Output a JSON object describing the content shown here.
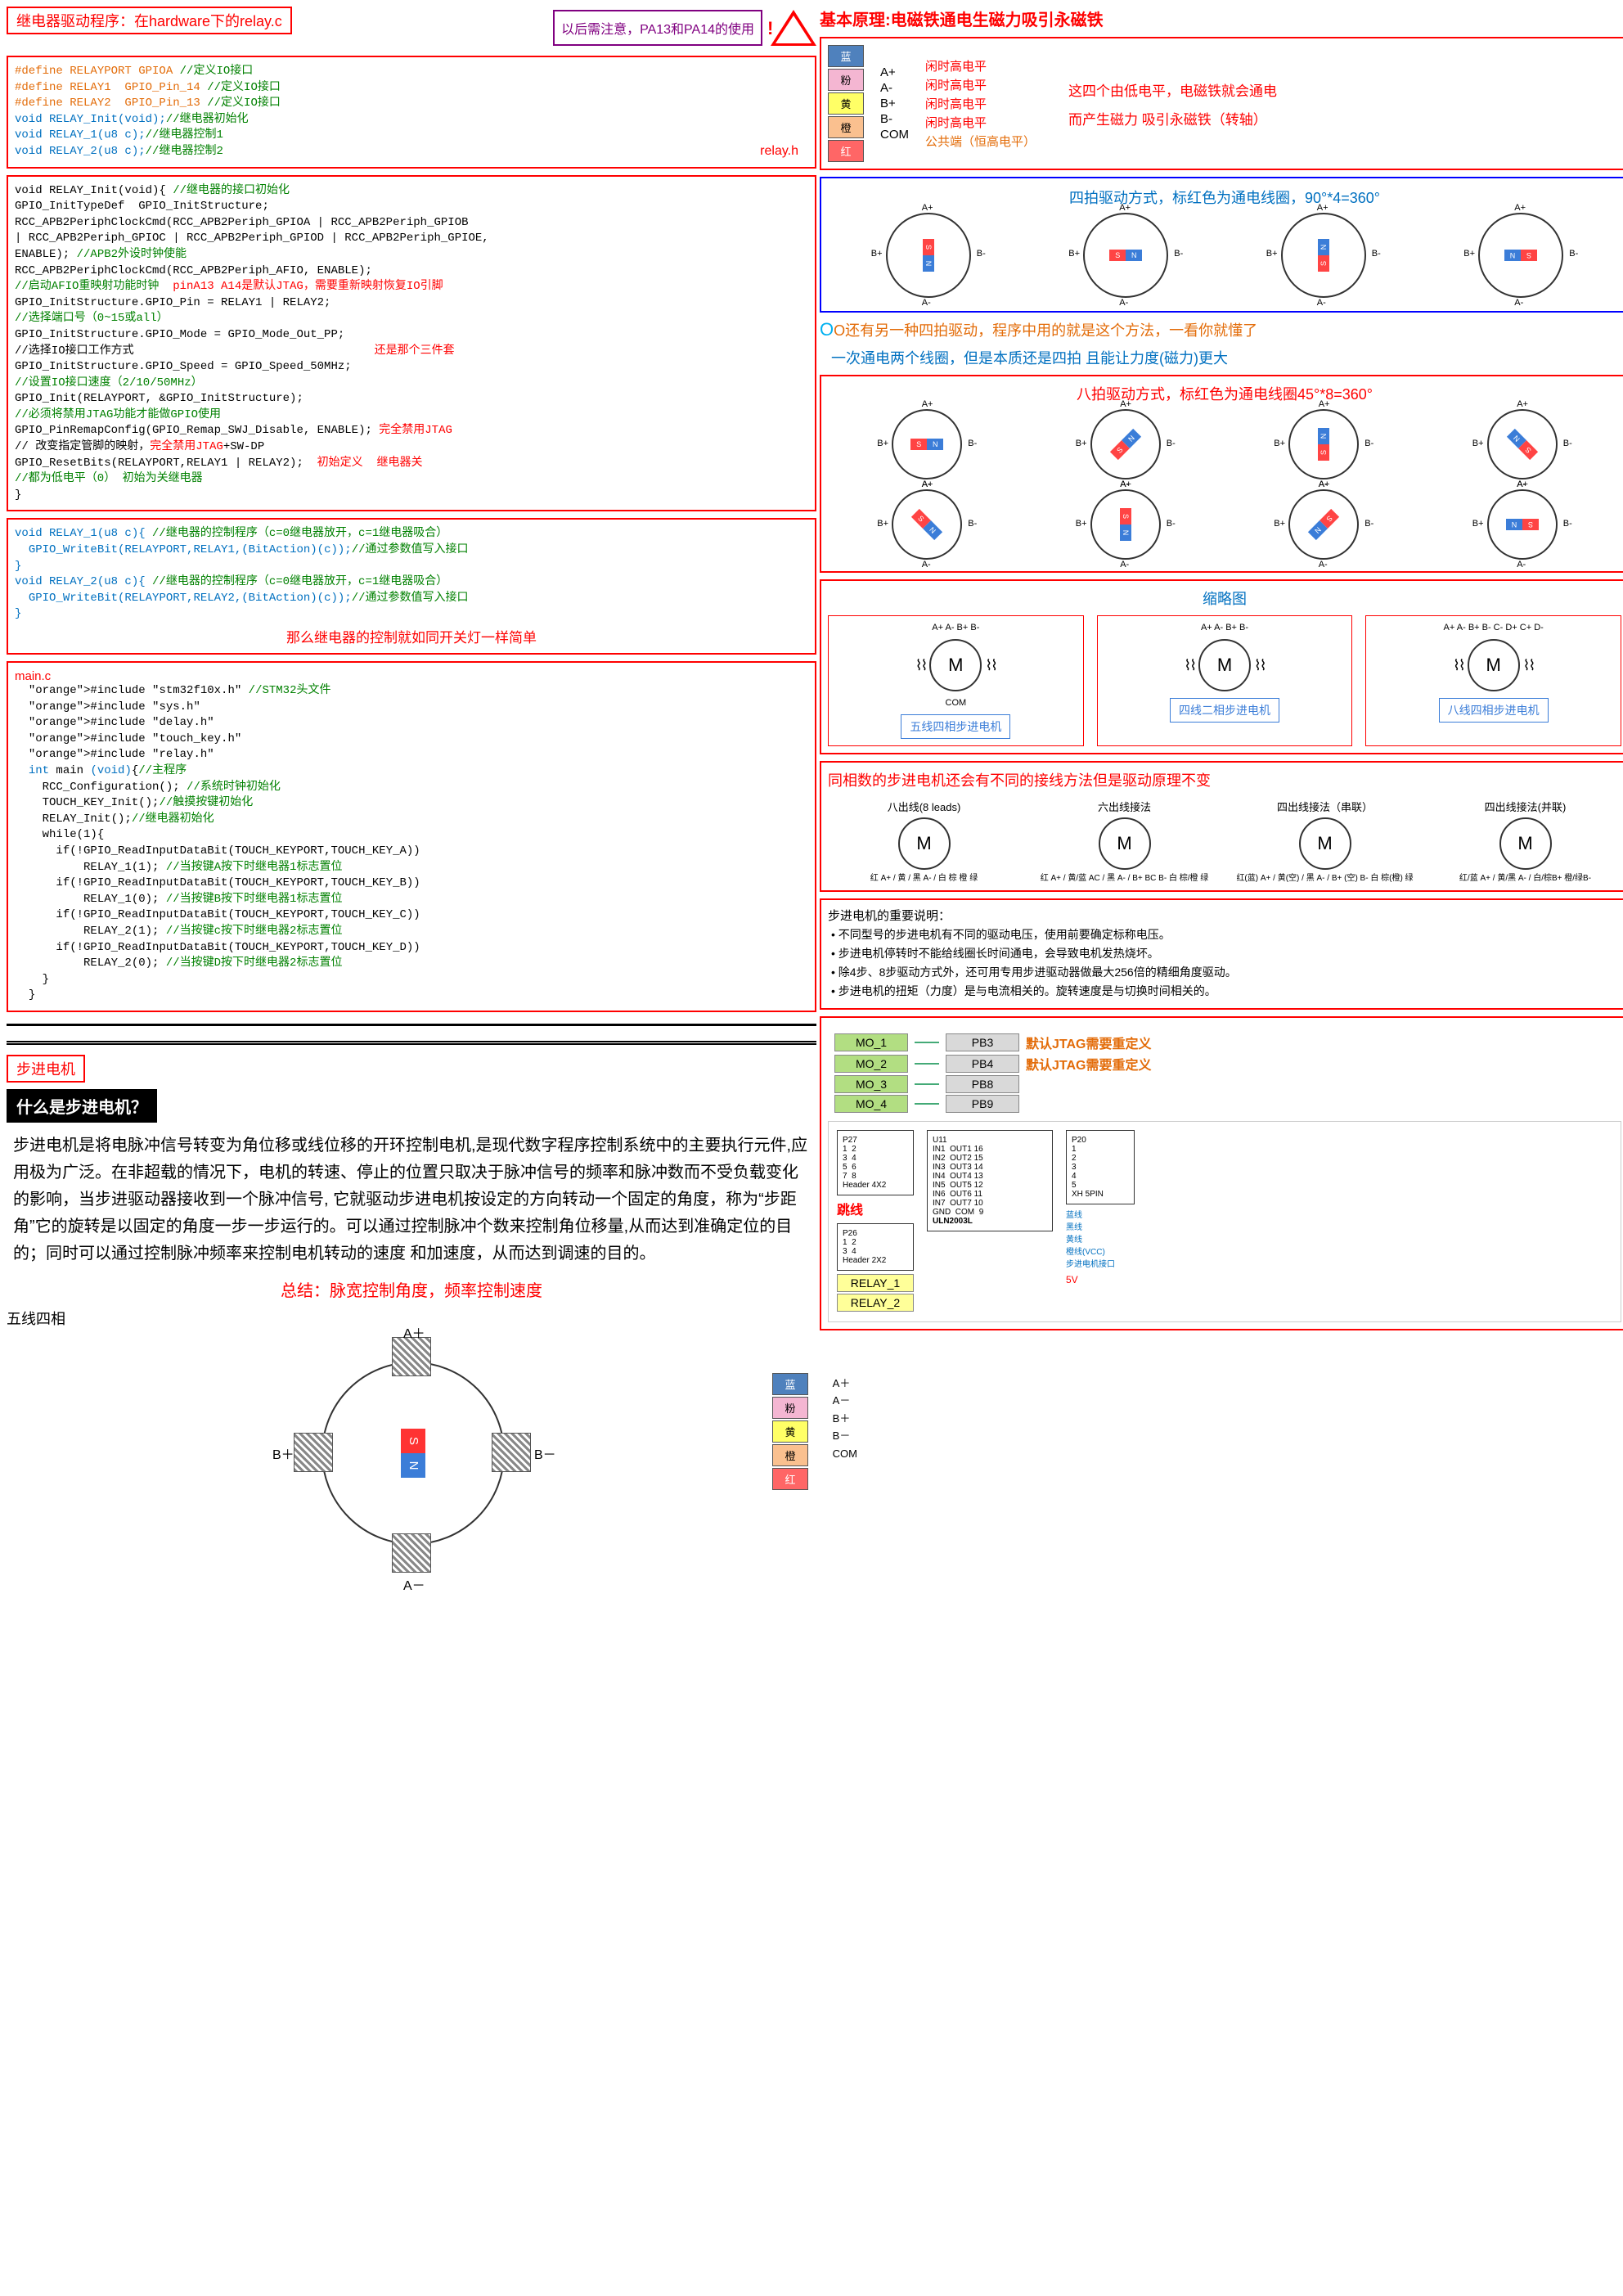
{
  "left": {
    "title": "继电器驱动程序：在hardware下的relay.c",
    "callout": "以后需注意，PA13和PA14的使用",
    "relay_h_tag": "relay.h",
    "code1": [
      [
        "orange",
        "#define RELAYPORT GPIOA "
      ],
      [
        "green",
        "//定义IO接口"
      ],
      [
        "",
        ""
      ],
      [
        "orange",
        "#define RELAY1  GPIO_Pin_14 "
      ],
      [
        "green",
        "//定义IO接口"
      ],
      [
        "",
        ""
      ],
      [
        "orange",
        "#define RELAY2  GPIO_Pin_13 "
      ],
      [
        "green",
        "//定义IO接口"
      ],
      [
        "",
        ""
      ],
      [
        "blue",
        "void RELAY_Init(void);"
      ],
      [
        "green",
        "//继电器初始化"
      ],
      [
        "",
        ""
      ],
      [
        "blue",
        "void RELAY_1(u8 c);"
      ],
      [
        "green",
        "//继电器控制1"
      ],
      [
        "",
        ""
      ],
      [
        "blue",
        "void RELAY_2(u8 c);"
      ],
      [
        "green",
        "//继电器控制2"
      ]
    ],
    "code2": "void RELAY_Init(void){ //继电器的接口初始化\nGPIO_InitTypeDef  GPIO_InitStructure;\nRCC_APB2PeriphClockCmd(RCC_APB2Periph_GPIOA | RCC_APB2Periph_GPIOB\n| RCC_APB2Periph_GPIOC | RCC_APB2Periph_GPIOD | RCC_APB2Periph_GPIOE,\nENABLE); //APB2外设时钟使能\nRCC_APB2PeriphClockCmd(RCC_APB2Periph_AFIO, ENABLE);\n//启动AFIO重映射功能时钟  pinA13 A14是默认JTAG，需要重新映射恢复IO引脚\nGPIO_InitStructure.GPIO_Pin = RELAY1 | RELAY2;\n//选择端口号（0~15或all）\nGPIO_InitStructure.GPIO_Mode = GPIO_Mode_Out_PP;\n//选择IO接口工作方式                                   还是那个三件套\nGPIO_InitStructure.GPIO_Speed = GPIO_Speed_50MHz;\n//设置IO接口速度（2/10/50MHz）\nGPIO_Init(RELAYPORT, &GPIO_InitStructure);\n//必须将禁用JTAG功能才能做GPIO使用\nGPIO_PinRemapConfig(GPIO_Remap_SWJ_Disable, ENABLE); 完全禁用JTAG\n// 改变指定管脚的映射，完全禁用JTAG+SW-DP\nGPIO_ResetBits(RELAYPORT,RELAY1 | RELAY2);  初始定义  继电器关\n//都为低电平（0） 初始为关继电器\n}",
    "code3": "void RELAY_1(u8 c){ //继电器的控制程序（c=0继电器放开，c=1继电器吸合）\n  GPIO_WriteBit(RELAYPORT,RELAY1,(BitAction)(c));//通过参数值写入接口\n}\nvoid RELAY_2(u8 c){ //继电器的控制程序（c=0继电器放开，c=1继电器吸合）\n  GPIO_WriteBit(RELAYPORT,RELAY2,(BitAction)(c));//通过参数值写入接口\n}",
    "code3_note": "那么继电器的控制就如同开关灯一样简单",
    "mainc_tag": "main.c",
    "code4": "  #include \"stm32f10x.h\" //STM32头文件\n  #include \"sys.h\"\n  #include \"delay.h\"\n  #include \"touch_key.h\"\n  #include \"relay.h\"\n  int main (void){//主程序\n    RCC_Configuration(); //系统时钟初始化\n    TOUCH_KEY_Init();//触摸按键初始化\n    RELAY_Init();//继电器初始化\n    while(1){\n      if(!GPIO_ReadInputDataBit(TOUCH_KEYPORT,TOUCH_KEY_A))\n          RELAY_1(1); //当按键A按下时继电器1标志置位\n      if(!GPIO_ReadInputDataBit(TOUCH_KEYPORT,TOUCH_KEY_B))\n          RELAY_1(0); //当按键B按下时继电器1标志置位\n      if(!GPIO_ReadInputDataBit(TOUCH_KEYPORT,TOUCH_KEY_C))\n          RELAY_2(1); //当按键c按下时继电器2标志置位\n      if(!GPIO_ReadInputDataBit(TOUCH_KEYPORT,TOUCH_KEY_D))\n          RELAY_2(0); //当按键D按下时继电器2标志置位\n    }\n  }",
    "step_tag": "步进电机",
    "step_q": "什么是步进电机？",
    "step_para": "步进电机是将电脉冲信号转变为角位移或线位移的开环控制电机,是现代数字程序控制系统中的主要执行元件,应用极为广泛。在非超载的情况下，电机的转速、停止的位置只取决于脉冲信号的频率和脉冲数而不受负载变化的影响，当步进驱动器接收到一个脉冲信号, 它就驱动步进电机按设定的方向转动一个固定的角度，称为“步距角”它的旋转是以固定的角度一步一步运行的。可以通过控制脉冲个数来控制角位移量,从而达到准确定位的目的；同时可以通过控制脉冲频率来控制电机转动的速度 和加速度，从而达到调速的目的。",
    "step_sum": "总结：脉宽控制角度，频率控制速度",
    "five_label": "五线四相",
    "pins": [
      "A＋",
      "A－",
      "B＋",
      "B－",
      "COM"
    ]
  },
  "right": {
    "principle": "基本原理:电磁铁通电生磁力吸引永磁铁",
    "wires": [
      {
        "c": "lan",
        "t": "蓝",
        "p": "A+",
        "s": "闲时高电平"
      },
      {
        "c": "fen",
        "t": "粉",
        "p": "A-",
        "s": "闲时高电平"
      },
      {
        "c": "huang",
        "t": "黄",
        "p": "B+",
        "s": "闲时高电平"
      },
      {
        "c": "cheng",
        "t": "橙",
        "p": "B-",
        "s": "闲时高电平"
      },
      {
        "c": "hong",
        "t": "红",
        "p": "COM",
        "s": "公共端（恒高电平）"
      }
    ],
    "wire_note1": "这四个由低电平，电磁铁就会通电",
    "wire_note2": "而产生磁力  吸引永磁铁（转轴）",
    "four_beat": "四拍驱动方式，标红色为通电线圈，90°*4=360°",
    "o_line": "O还有另一种四拍驱动，程序中用的就是这个方法，一看你就懂了",
    "one_line": "一次通电两个线圈，但是本质还是四拍 且能让力度(磁力)更大",
    "eight_beat": "八拍驱动方式，标红色为通电线圈45°*8=360°",
    "thumb_title": "缩略图",
    "thumbs": [
      {
        "t": "五线四相步进电机",
        "p": "A+ A- B+ B-",
        "c": "COM"
      },
      {
        "t": "四线二相步进电机",
        "p": "A+ A- B+ B-",
        "c": ""
      },
      {
        "t": "八线四相步进电机",
        "p": "A+ A- B+ B- C- D+ C+ D-",
        "c": ""
      }
    ],
    "same_phase": "同相数的步进电机还会有不同的接线方法但是驱动原理不变",
    "methods": [
      "八出线(8 leads)",
      "六出线接法",
      "四出线接法（串联）",
      "四出线接法(并联)"
    ],
    "method_pins": [
      "红 A+ / 黄 / 黑 A- / 白 棕 橙 绿",
      "红 A+ / 黄/蓝 AC / 黑 A- / B+ BC B- 白 棕/橙 绿",
      "红(蓝) A+ / 黄(空) / 黑 A- / B+ (空) B- 白 棕(橙) 绿",
      "红/蓝 A+ / 黄/黑 A- / 白/棕B+ 橙/绿B-"
    ],
    "notes_title": "步进电机的重要说明：",
    "notes": [
      "不同型号的步进电机有不同的驱动电压，使用前要确定标称电压。",
      "步进电机停转时不能给线圈长时间通电，会导致电机发热烧坏。",
      "除4步、8步驱动方式外，还可用专用步进驱动器做最大256倍的精细角度驱动。",
      "步进电机的扭矩（力度）是与电流相关的。旋转速度是与切换时间相关的。"
    ],
    "pins_map": [
      {
        "m": "MO_1",
        "p": "PB3",
        "n": "默认JTAG需要重定义"
      },
      {
        "m": "MO_2",
        "p": "PB4",
        "n": "默认JTAG需要重定义"
      },
      {
        "m": "MO_3",
        "p": "PB8",
        "n": ""
      },
      {
        "m": "MO_4",
        "p": "PB9",
        "n": ""
      }
    ],
    "jumper": "跳线",
    "ic": "ULN2003L",
    "relay_pins": [
      "RELAY_1",
      "RELAY_2"
    ],
    "hdr1": "Header 4X2",
    "hdr2": "Header 2X2",
    "xh": "XH 5PIN",
    "xh_labels": [
      "蓝线",
      "黑线",
      "黄线",
      "橙线(VCC)",
      "步进电机接口"
    ],
    "gnd": "GND",
    "v5": "5V",
    "com": "COM"
  }
}
